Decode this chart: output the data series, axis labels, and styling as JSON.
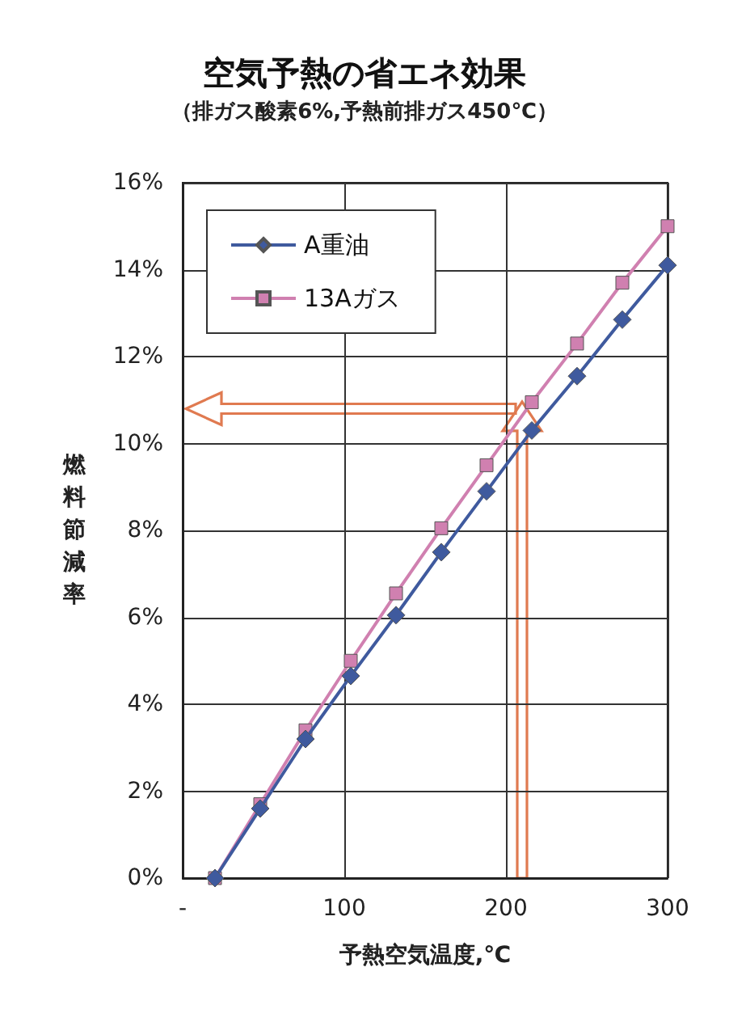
{
  "chart_data": {
    "type": "line",
    "title": "空気予熱の省エネ効果",
    "subtitle": "（排ガス酸素6%,予熱前排ガス450℃）",
    "xlabel": "予熱空気温度,℃",
    "ylabel": "燃料節減率",
    "x": [
      20,
      48,
      76,
      104,
      132,
      160,
      188,
      216,
      244,
      272,
      300
    ],
    "series": [
      {
        "name": "A重油",
        "color": "#3f5a9e",
        "marker": "diamond",
        "values": [
          0,
          1.6,
          3.2,
          4.65,
          6.05,
          7.5,
          8.9,
          10.3,
          11.55,
          12.85,
          14.1
        ]
      },
      {
        "name": "13Aガス",
        "color": "#d080b0",
        "marker": "square",
        "values": [
          0,
          1.7,
          3.4,
          5.0,
          6.55,
          8.05,
          9.5,
          10.95,
          12.3,
          13.7,
          15.0
        ]
      }
    ],
    "xlim": [
      0,
      300
    ],
    "xticks": [
      {
        "value": 0,
        "label": "-"
      },
      100,
      200,
      300
    ],
    "ylim": [
      0,
      16
    ],
    "yticks": [
      {
        "value": 0,
        "label": "0%"
      },
      {
        "value": 2,
        "label": "2%"
      },
      {
        "value": 4,
        "label": "4%"
      },
      {
        "value": 6,
        "label": "6%"
      },
      {
        "value": 8,
        "label": "8%"
      },
      {
        "value": 10,
        "label": "10%"
      },
      {
        "value": 12,
        "label": "12%"
      },
      {
        "value": 14,
        "label": "14%"
      },
      {
        "value": 16,
        "label": "16%"
      }
    ],
    "grid": true,
    "legend": "top left",
    "line_style": "solid"
  }
}
